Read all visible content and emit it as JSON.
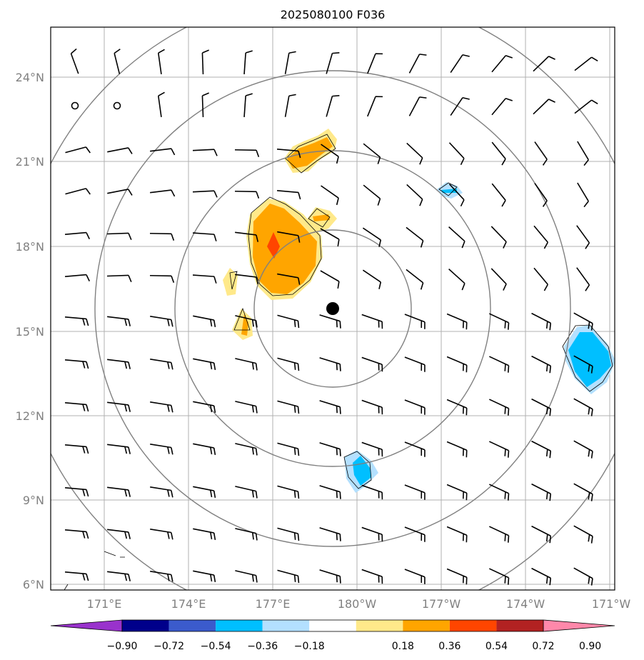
{
  "title": "2025080100 F036",
  "lon_ticks": [
    "171°E",
    "174°E",
    "177°E",
    "180°W",
    "177°W",
    "174°W",
    "171°W"
  ],
  "lat_ticks": [
    "24°N",
    "21°N",
    "18°N",
    "15°N",
    "12°N",
    "9°N",
    "6°N"
  ],
  "colorbar": {
    "labels": [
      "−0.90",
      "−0.72",
      "−0.54",
      "−0.36",
      "−0.18",
      "0.18",
      "0.36",
      "0.54",
      "0.72",
      "0.90"
    ],
    "under_color": "#9932cc",
    "over_color": "#ff88aa",
    "colors": [
      "#00008b",
      "#3b5bcc",
      "#00bfff",
      "#b3e0ff",
      "#ffffff",
      "#ffe98a",
      "#ffa500",
      "#ff4500",
      "#b22222"
    ]
  },
  "center_marker": {
    "lon": 178.8,
    "lat": 15.8
  },
  "range_rings_deg": [
    2.7,
    5.5,
    8.3,
    11.1
  ]
}
